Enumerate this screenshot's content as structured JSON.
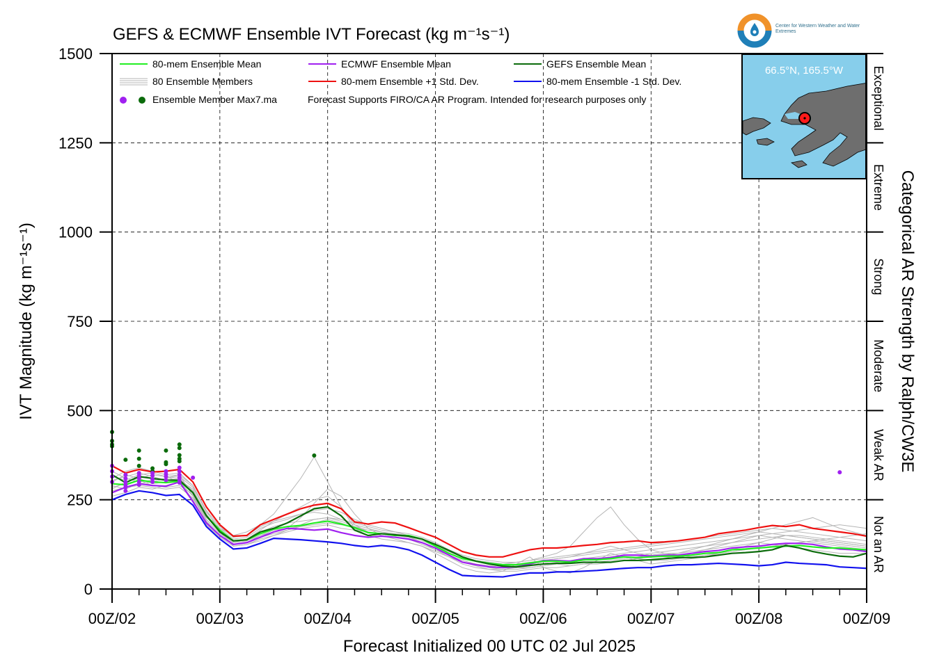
{
  "title": "GEFS & ECMWF Ensemble IVT Forecast (kg m⁻¹s⁻¹)",
  "colors": {
    "mean80": "#22ee22",
    "ecmwf": "#a020f0",
    "gefs": "#0b6b0b",
    "plus_sd": "#ee1111",
    "minus_sd": "#1111ee",
    "members": "#b5b5b5",
    "ocean": "#87ceeb",
    "land": "#6e6e6e",
    "logo_orange": "#f0922a",
    "logo_blue": "#1f7fb8"
  },
  "legend": {
    "mean80": "80-mem Ensemble Mean",
    "ecmwf": "ECMWF Ensemble Mean",
    "gefs": "GEFS Ensemble Mean",
    "members": "80 Ensemble Members",
    "plus_sd": "80-mem Ensemble +1 Std. Dev.",
    "minus_sd": "80-mem Ensemble -1 Std. Dev.",
    "max": "Ensemble Member Max7.ma",
    "note": "Forecast Supports FIRO/CA AR Program. Intended for research purposes only"
  },
  "logo": {
    "name": "Center for Western Weather and Water Extremes"
  },
  "inset": {
    "coord": "66.5°N, 165.5°W"
  },
  "categories_axis": {
    "label": "Categorical AR Strength by Ralph/CW3E",
    "bands": [
      {
        "label": "Not an AR",
        "from": 0,
        "to": 250
      },
      {
        "label": "Weak AR",
        "from": 250,
        "to": 500
      },
      {
        "label": "Moderate",
        "from": 500,
        "to": 750
      },
      {
        "label": "Strong",
        "from": 750,
        "to": 1000
      },
      {
        "label": "Extreme",
        "from": 1000,
        "to": 1250
      },
      {
        "label": "Exceptional",
        "from": 1250,
        "to": 1500
      }
    ]
  },
  "chart_data": {
    "type": "line",
    "title": "GEFS & ECMWF Ensemble IVT Forecast (kg m⁻¹s⁻¹)",
    "xlabel": "Forecast Initialized 00 UTC 02 Jul 2025",
    "ylabel": "IVT Magnitude (kg m⁻¹s⁻¹)",
    "ylim": [
      0,
      1500
    ],
    "xlim": [
      0,
      168
    ],
    "x_unit": "forecast hour",
    "x_ticks": [
      0,
      24,
      48,
      72,
      96,
      120,
      144,
      168
    ],
    "x_tick_labels": [
      "00Z/02",
      "00Z/03",
      "00Z/04",
      "00Z/05",
      "00Z/06",
      "00Z/07",
      "00Z/08",
      "00Z/09"
    ],
    "y_ticks": [
      0,
      250,
      500,
      750,
      1000,
      1250,
      1500
    ],
    "y_tick_labels": [
      "0",
      "250",
      "500",
      "750",
      "1000",
      "1250",
      "1500"
    ],
    "grid": true,
    "legend_position": "top-left",
    "x": [
      0,
      3,
      6,
      9,
      12,
      15,
      18,
      21,
      24,
      27,
      30,
      33,
      36,
      39,
      42,
      45,
      48,
      51,
      54,
      57,
      60,
      63,
      66,
      69,
      72,
      75,
      78,
      81,
      84,
      87,
      90,
      93,
      96,
      99,
      102,
      105,
      108,
      111,
      114,
      117,
      120,
      123,
      126,
      129,
      132,
      135,
      138,
      141,
      144,
      147,
      150,
      153,
      156,
      159,
      162,
      165,
      168
    ],
    "series": [
      {
        "name": "80-mem Ensemble Mean",
        "color": "#22ee22",
        "values": [
          295,
          292,
          305,
          300,
          298,
          302,
          270,
          205,
          165,
          135,
          138,
          155,
          168,
          175,
          178,
          185,
          190,
          182,
          172,
          158,
          155,
          150,
          150,
          140,
          120,
          100,
          85,
          78,
          72,
          68,
          68,
          73,
          78,
          78,
          75,
          82,
          82,
          85,
          90,
          88,
          90,
          92,
          92,
          95,
          100,
          102,
          110,
          112,
          115,
          118,
          120,
          122,
          118,
          115,
          115,
          112,
          110
        ]
      },
      {
        "name": "ECMWF Ensemble Mean",
        "color": "#a020f0",
        "values": [
          270,
          285,
          295,
          290,
          288,
          300,
          245,
          185,
          150,
          125,
          130,
          145,
          160,
          170,
          168,
          165,
          168,
          158,
          150,
          145,
          148,
          145,
          140,
          130,
          115,
          95,
          75,
          68,
          62,
          60,
          62,
          70,
          80,
          80,
          78,
          85,
          85,
          88,
          95,
          95,
          92,
          95,
          95,
          100,
          105,
          108,
          115,
          118,
          120,
          125,
          128,
          128,
          125,
          118,
          112,
          110,
          105
        ]
      },
      {
        "name": "GEFS Ensemble Mean",
        "color": "#0b6b0b",
        "values": [
          320,
          298,
          315,
          310,
          305,
          305,
          270,
          205,
          160,
          135,
          138,
          160,
          170,
          185,
          205,
          225,
          230,
          205,
          165,
          150,
          155,
          152,
          148,
          140,
          125,
          108,
          90,
          78,
          70,
          64,
          62,
          66,
          70,
          72,
          72,
          75,
          75,
          75,
          80,
          80,
          82,
          85,
          88,
          88,
          90,
          95,
          100,
          102,
          105,
          110,
          122,
          115,
          105,
          98,
          92,
          90,
          100
        ]
      },
      {
        "name": "80-mem Ensemble +1 Std. Dev.",
        "color": "#ee1111",
        "values": [
          345,
          325,
          335,
          328,
          330,
          335,
          300,
          230,
          180,
          148,
          150,
          180,
          195,
          210,
          225,
          235,
          240,
          225,
          188,
          182,
          188,
          185,
          172,
          158,
          145,
          125,
          105,
          95,
          90,
          90,
          100,
          110,
          115,
          115,
          118,
          122,
          125,
          130,
          132,
          135,
          130,
          132,
          135,
          140,
          145,
          155,
          160,
          165,
          172,
          178,
          175,
          180,
          170,
          165,
          160,
          155,
          148
        ]
      },
      {
        "name": "80-mem Ensemble -1 Std. Dev.",
        "color": "#1111ee",
        "values": [
          250,
          265,
          275,
          270,
          262,
          265,
          235,
          175,
          140,
          112,
          115,
          128,
          142,
          140,
          138,
          135,
          132,
          128,
          122,
          118,
          122,
          118,
          110,
          95,
          75,
          55,
          38,
          36,
          35,
          34,
          40,
          45,
          45,
          48,
          48,
          50,
          52,
          55,
          58,
          60,
          60,
          65,
          68,
          68,
          70,
          72,
          70,
          68,
          65,
          68,
          75,
          72,
          70,
          68,
          62,
          60,
          58
        ]
      }
    ],
    "members": [
      [
        300,
        320,
        310,
        295,
        300,
        305,
        280,
        210,
        160,
        130,
        140,
        165,
        190,
        210,
        230,
        250,
        260,
        230,
        180,
        160,
        150,
        145,
        140,
        125,
        110,
        95,
        80,
        70,
        60,
        55,
        60,
        70,
        80,
        85,
        90,
        100,
        110,
        120,
        110,
        100,
        95,
        90,
        85,
        100,
        110,
        120,
        130,
        140,
        150,
        145,
        140,
        135,
        130,
        125,
        120,
        115,
        110
      ],
      [
        280,
        300,
        310,
        320,
        315,
        300,
        260,
        200,
        170,
        150,
        160,
        180,
        210,
        260,
        310,
        370,
        300,
        230,
        170,
        150,
        140,
        135,
        130,
        120,
        100,
        80,
        60,
        50,
        45,
        50,
        70,
        90,
        60,
        50,
        45,
        60,
        80,
        100,
        90,
        80,
        70,
        75,
        80,
        85,
        90,
        100,
        110,
        120,
        130,
        140,
        150,
        145,
        140,
        135,
        130,
        125,
        120
      ],
      [
        310,
        330,
        340,
        330,
        320,
        325,
        290,
        220,
        160,
        120,
        125,
        140,
        150,
        160,
        170,
        175,
        180,
        170,
        165,
        160,
        155,
        150,
        145,
        130,
        110,
        90,
        70,
        60,
        55,
        55,
        55,
        60,
        65,
        70,
        75,
        80,
        85,
        90,
        95,
        95,
        100,
        105,
        110,
        115,
        120,
        125,
        130,
        135,
        140,
        145,
        150,
        150,
        145,
        140,
        135,
        130,
        125
      ],
      [
        290,
        280,
        295,
        300,
        310,
        320,
        260,
        190,
        150,
        125,
        130,
        150,
        165,
        170,
        175,
        180,
        185,
        180,
        175,
        165,
        160,
        155,
        150,
        140,
        120,
        100,
        85,
        80,
        75,
        70,
        75,
        80,
        90,
        100,
        120,
        160,
        200,
        230,
        180,
        140,
        110,
        100,
        95,
        90,
        95,
        100,
        105,
        110,
        115,
        120,
        125,
        130,
        135,
        130,
        125,
        120,
        115
      ],
      [
        260,
        270,
        285,
        280,
        290,
        300,
        250,
        180,
        145,
        120,
        125,
        135,
        150,
        165,
        180,
        195,
        200,
        190,
        175,
        160,
        150,
        145,
        140,
        130,
        115,
        95,
        75,
        65,
        55,
        50,
        50,
        55,
        60,
        60,
        65,
        70,
        70,
        75,
        80,
        85,
        90,
        95,
        100,
        110,
        120,
        130,
        140,
        150,
        160,
        170,
        180,
        190,
        200,
        185,
        170,
        160,
        150
      ],
      [
        330,
        310,
        300,
        305,
        310,
        315,
        285,
        220,
        175,
        145,
        150,
        175,
        190,
        200,
        210,
        215,
        210,
        195,
        180,
        170,
        160,
        150,
        145,
        135,
        120,
        105,
        90,
        80,
        70,
        65,
        60,
        60,
        65,
        70,
        75,
        80,
        85,
        90,
        90,
        85,
        80,
        80,
        85,
        90,
        95,
        100,
        105,
        110,
        115,
        120,
        125,
        130,
        135,
        140,
        145,
        150,
        155
      ],
      [
        285,
        295,
        305,
        290,
        285,
        290,
        265,
        195,
        155,
        130,
        135,
        150,
        160,
        170,
        200,
        240,
        280,
        260,
        210,
        170,
        150,
        140,
        130,
        120,
        105,
        90,
        75,
        70,
        65,
        60,
        65,
        70,
        75,
        70,
        65,
        70,
        75,
        80,
        85,
        90,
        95,
        100,
        100,
        105,
        110,
        115,
        120,
        125,
        130,
        125,
        120,
        115,
        110,
        105,
        100,
        100,
        100
      ],
      [
        305,
        315,
        325,
        315,
        305,
        310,
        275,
        205,
        165,
        135,
        140,
        160,
        175,
        185,
        190,
        195,
        200,
        195,
        185,
        175,
        165,
        160,
        155,
        145,
        130,
        110,
        95,
        85,
        80,
        75,
        75,
        80,
        85,
        90,
        95,
        100,
        105,
        110,
        115,
        120,
        125,
        130,
        135,
        140,
        145,
        150,
        155,
        160,
        165,
        170,
        165,
        160,
        155,
        150,
        145,
        140,
        135
      ],
      [
        275,
        285,
        290,
        285,
        280,
        285,
        255,
        190,
        150,
        125,
        130,
        145,
        155,
        165,
        175,
        185,
        195,
        185,
        170,
        160,
        150,
        145,
        140,
        130,
        115,
        95,
        80,
        70,
        65,
        60,
        60,
        65,
        70,
        75,
        80,
        85,
        90,
        95,
        100,
        105,
        110,
        115,
        120,
        125,
        130,
        135,
        140,
        145,
        150,
        155,
        160,
        165,
        170,
        175,
        180,
        175,
        170
      ],
      [
        315,
        305,
        320,
        325,
        315,
        320,
        290,
        215,
        170,
        140,
        145,
        170,
        185,
        195,
        210,
        220,
        225,
        215,
        195,
        180,
        170,
        160,
        150,
        140,
        125,
        105,
        90,
        80,
        75,
        70,
        70,
        75,
        80,
        85,
        90,
        95,
        100,
        105,
        110,
        115,
        120,
        125,
        130,
        135,
        140,
        145,
        150,
        155,
        160,
        155,
        150,
        145,
        140,
        135,
        130,
        125,
        120
      ]
    ],
    "max_markers": [
      {
        "series": "GEFS",
        "color": "#0b6b0b",
        "points": [
          [
            0,
            440
          ],
          [
            0,
            415
          ],
          [
            0,
            405
          ],
          [
            0,
            400
          ],
          [
            3,
            362
          ],
          [
            6,
            388
          ],
          [
            6,
            365
          ],
          [
            6,
            345
          ],
          [
            9,
            338
          ],
          [
            9,
            330
          ],
          [
            12,
            388
          ],
          [
            12,
            355
          ],
          [
            12,
            350
          ],
          [
            15,
            405
          ],
          [
            15,
            395
          ],
          [
            15,
            375
          ],
          [
            15,
            365
          ],
          [
            15,
            358
          ],
          [
            45,
            374
          ]
        ]
      },
      {
        "series": "ECMWF",
        "color": "#a020f0",
        "points": [
          [
            0,
            345
          ],
          [
            0,
            330
          ],
          [
            0,
            315
          ],
          [
            0,
            300
          ],
          [
            3,
            320
          ],
          [
            3,
            310
          ],
          [
            3,
            300
          ],
          [
            3,
            292
          ],
          [
            3,
            285
          ],
          [
            3,
            275
          ],
          [
            6,
            325
          ],
          [
            6,
            318
          ],
          [
            6,
            310
          ],
          [
            6,
            300
          ],
          [
            6,
            292
          ],
          [
            9,
            325
          ],
          [
            9,
            318
          ],
          [
            9,
            308
          ],
          [
            9,
            300
          ],
          [
            12,
            330
          ],
          [
            12,
            322
          ],
          [
            12,
            315
          ],
          [
            12,
            305
          ],
          [
            15,
            340
          ],
          [
            15,
            330
          ],
          [
            15,
            320
          ],
          [
            15,
            312
          ],
          [
            15,
            305
          ],
          [
            15,
            298
          ],
          [
            18,
            312
          ],
          [
            162,
            327
          ]
        ]
      }
    ]
  }
}
